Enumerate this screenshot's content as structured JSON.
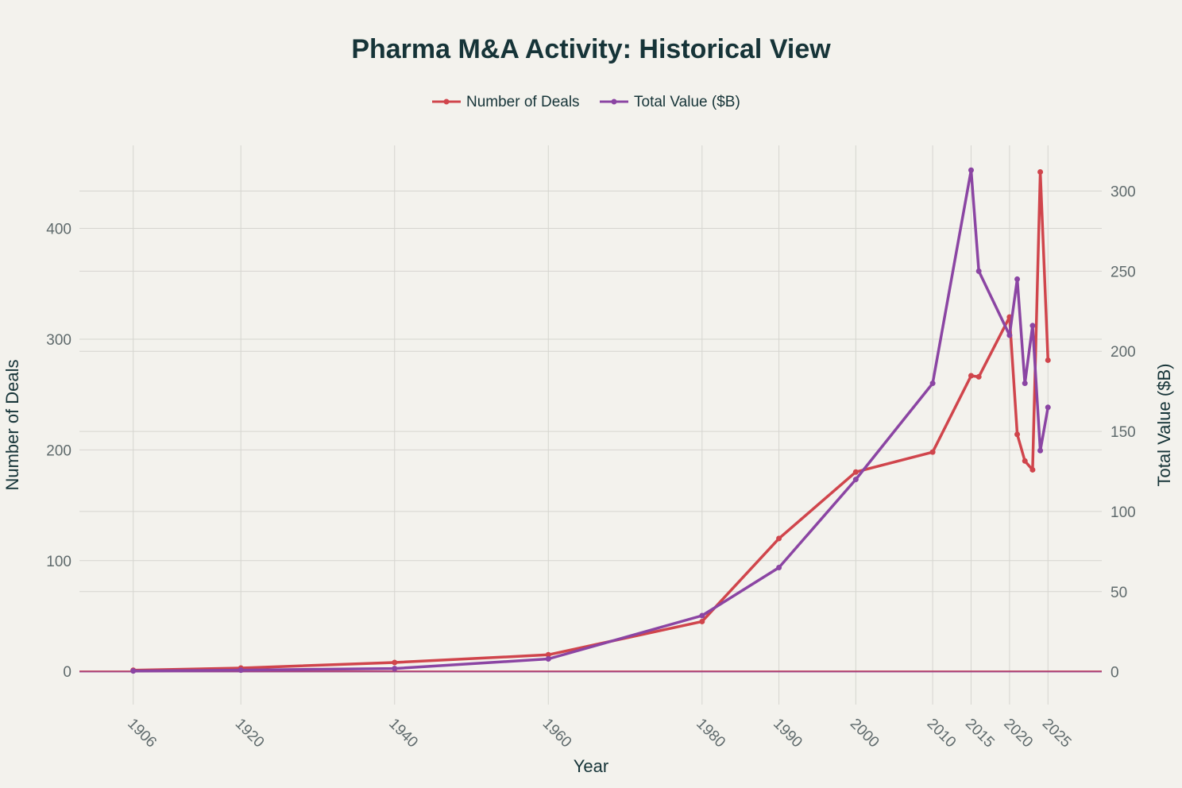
{
  "chart_data": {
    "type": "line",
    "title": "Pharma M&A Activity: Historical View",
    "xlabel": "Year",
    "ylabel": "Number of Deals",
    "y2label": "Total Value ($B)",
    "x": [
      1906,
      1920,
      1940,
      1960,
      1980,
      1990,
      2000,
      2010,
      2015,
      2016,
      2020,
      2021,
      2022,
      2023,
      2024,
      2025
    ],
    "xticks": [
      1906,
      1920,
      1940,
      1960,
      1980,
      1990,
      2000,
      2010,
      2015,
      2020,
      2025
    ],
    "xlim": [
      1899,
      2032
    ],
    "ylim": [
      -30,
      475
    ],
    "y2lim": [
      -20.5,
      328.5
    ],
    "yticks": [
      0,
      100,
      200,
      300,
      400
    ],
    "y2ticks": [
      0,
      50,
      100,
      150,
      200,
      250,
      300
    ],
    "series": [
      {
        "name": "Number of Deals",
        "axis": "y",
        "color": "#d0454c",
        "values": [
          1,
          3,
          8,
          15,
          45,
          120,
          180,
          198,
          267,
          266,
          320,
          214,
          190,
          182,
          451,
          281
        ]
      },
      {
        "name": "Total Value ($B)",
        "axis": "y2",
        "color": "#8b45a3",
        "values": [
          0.5,
          1,
          2,
          8,
          35,
          65,
          120,
          180,
          313,
          250,
          210,
          245,
          180,
          216,
          138,
          165
        ]
      }
    ],
    "legend_position": "top-center",
    "grid": true
  }
}
